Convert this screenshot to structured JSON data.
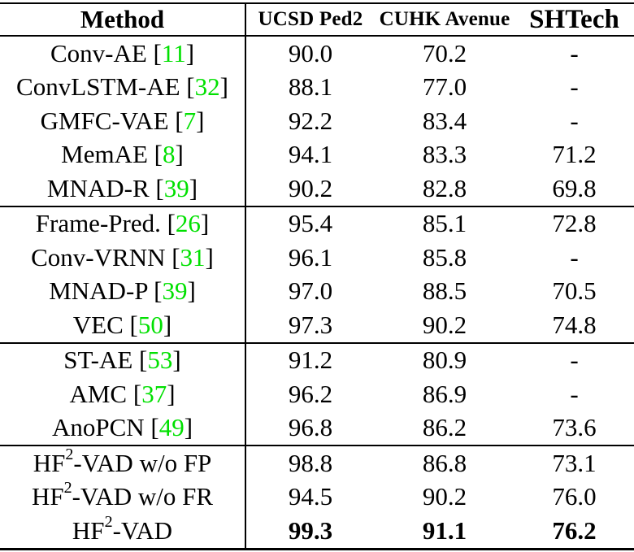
{
  "table": {
    "cite_color": "#00e000",
    "text_color": "#000000",
    "header": {
      "method": "Method",
      "columns": [
        "UCSD Ped2",
        "CUHK Avenue",
        "SHTech"
      ]
    },
    "groups": [
      {
        "rows": [
          {
            "method": "Conv-AE",
            "cite": "11",
            "values": [
              "90.0",
              "70.2",
              "-"
            ]
          },
          {
            "method": "ConvLSTM-AE",
            "cite": "32",
            "values": [
              "88.1",
              "77.0",
              "-"
            ]
          },
          {
            "method": "GMFC-VAE",
            "cite": "7",
            "values": [
              "92.2",
              "83.4",
              "-"
            ]
          },
          {
            "method": "MemAE",
            "cite": "8",
            "values": [
              "94.1",
              "83.3",
              "71.2"
            ]
          },
          {
            "method": "MNAD-R",
            "cite": "39",
            "values": [
              "90.2",
              "82.8",
              "69.8"
            ]
          }
        ]
      },
      {
        "rows": [
          {
            "method": "Frame-Pred.",
            "cite": "26",
            "values": [
              "95.4",
              "85.1",
              "72.8"
            ]
          },
          {
            "method": "Conv-VRNN",
            "cite": "31",
            "values": [
              "96.1",
              "85.8",
              "-"
            ]
          },
          {
            "method": "MNAD-P",
            "cite": "39",
            "values": [
              "97.0",
              "88.5",
              "70.5"
            ]
          },
          {
            "method": "VEC",
            "cite": "50",
            "values": [
              "97.3",
              "90.2",
              "74.8"
            ]
          }
        ]
      },
      {
        "rows": [
          {
            "method": "ST-AE",
            "cite": "53",
            "values": [
              "91.2",
              "80.9",
              "-"
            ]
          },
          {
            "method": "AMC",
            "cite": "37",
            "values": [
              "96.2",
              "86.9",
              "-"
            ]
          },
          {
            "method": "AnoPCN",
            "cite": "49",
            "values": [
              "96.8",
              "86.2",
              "73.6"
            ]
          }
        ]
      },
      {
        "rows": [
          {
            "method_pre": "HF",
            "method_sup": "2",
            "method_post": "-VAD w/o FP",
            "values": [
              "98.8",
              "86.8",
              "73.1"
            ]
          },
          {
            "method_pre": "HF",
            "method_sup": "2",
            "method_post": "-VAD w/o FR",
            "values": [
              "94.5",
              "90.2",
              "76.0"
            ]
          },
          {
            "method_pre": "HF",
            "method_sup": "2",
            "method_post": "-VAD",
            "values": [
              "99.3",
              "91.1",
              "76.2"
            ],
            "bold": true
          }
        ]
      }
    ]
  },
  "chart_data": {
    "type": "table",
    "title": "",
    "columns": [
      "Method",
      "UCSD Ped2",
      "CUHK Avenue",
      "SHTech"
    ],
    "rows": [
      [
        "Conv-AE [11]",
        90.0,
        70.2,
        null
      ],
      [
        "ConvLSTM-AE [32]",
        88.1,
        77.0,
        null
      ],
      [
        "GMFC-VAE [7]",
        92.2,
        83.4,
        null
      ],
      [
        "MemAE [8]",
        94.1,
        83.3,
        71.2
      ],
      [
        "MNAD-R [39]",
        90.2,
        82.8,
        69.8
      ],
      [
        "Frame-Pred. [26]",
        95.4,
        85.1,
        72.8
      ],
      [
        "Conv-VRNN [31]",
        96.1,
        85.8,
        null
      ],
      [
        "MNAD-P [39]",
        97.0,
        88.5,
        70.5
      ],
      [
        "VEC [50]",
        97.3,
        90.2,
        74.8
      ],
      [
        "ST-AE [53]",
        91.2,
        80.9,
        null
      ],
      [
        "AMC [37]",
        96.2,
        86.9,
        null
      ],
      [
        "AnoPCN [49]",
        96.8,
        86.2,
        73.6
      ],
      [
        "HF2-VAD w/o FP",
        98.8,
        86.8,
        73.1
      ],
      [
        "HF2-VAD w/o FR",
        94.5,
        90.2,
        76.0
      ],
      [
        "HF2-VAD",
        99.3,
        91.1,
        76.2
      ]
    ]
  }
}
